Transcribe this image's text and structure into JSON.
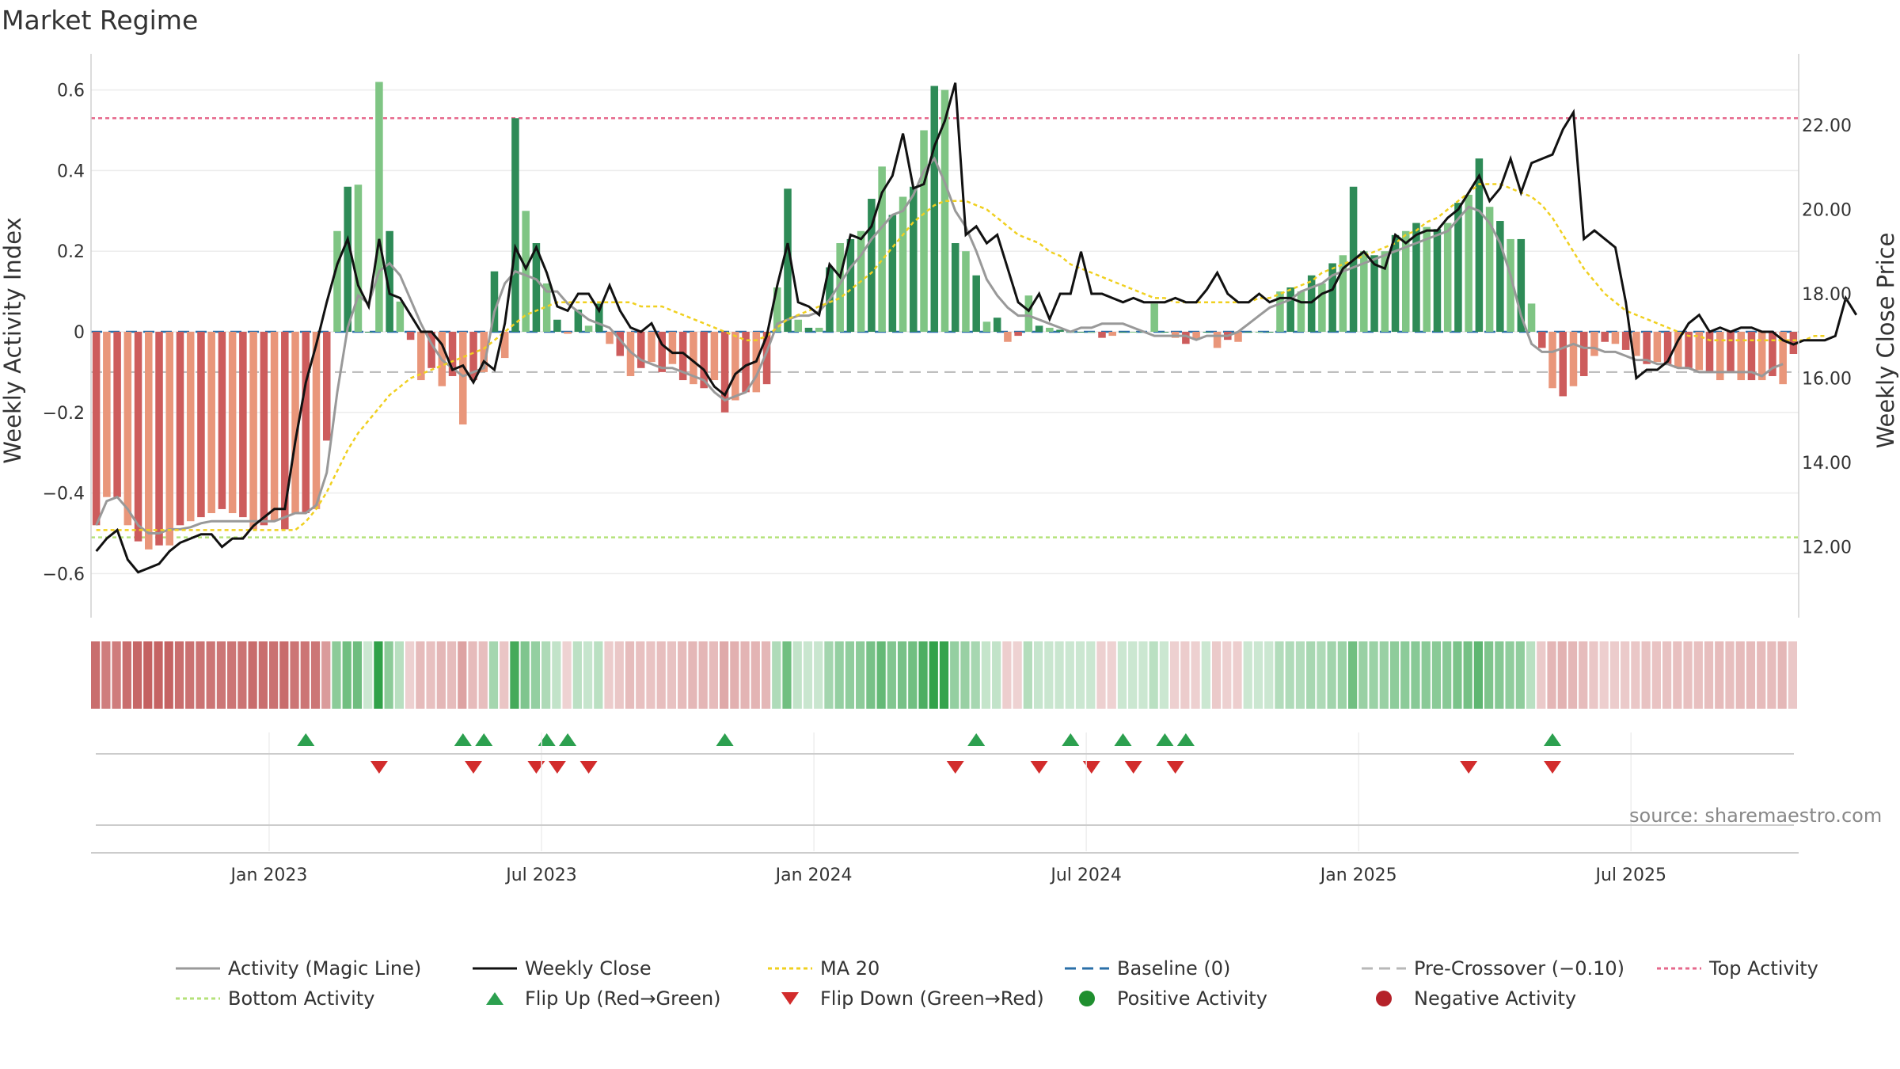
{
  "title": "Market Regime",
  "source_text": "source: sharemaestro.com",
  "colors": {
    "pos_dark": "#2e8b57",
    "pos_light": "#7fc584",
    "neg_dark": "#cd5c5c",
    "neg_light": "#e9967a",
    "magic_line": "#999999",
    "close": "#111111",
    "ma20": "#f0d020",
    "baseline": "#2a6fa8",
    "pre_cross": "#b8b8b8",
    "top_line": "#e6698c",
    "bottom_line": "#b5e27a",
    "flip_up": "#2ca04f",
    "flip_down": "#d22c2c"
  },
  "legend": [
    {
      "label": "Activity (Magic Line)",
      "type": "line",
      "color": "#999999",
      "dash": ""
    },
    {
      "label": "Weekly Close",
      "type": "line",
      "color": "#111111",
      "dash": ""
    },
    {
      "label": "MA 20",
      "type": "line",
      "color": "#f0d020",
      "dash": "5,4"
    },
    {
      "label": "Baseline (0)",
      "type": "line",
      "color": "#2a6fa8",
      "dash": "14,8"
    },
    {
      "label": "Pre-Crossover (−0.10)",
      "type": "line",
      "color": "#b8b8b8",
      "dash": "14,8"
    },
    {
      "label": "Top Activity",
      "type": "line",
      "color": "#e6698c",
      "dash": "5,4"
    },
    {
      "label": "Bottom Activity",
      "type": "line",
      "color": "#b5e27a",
      "dash": "5,4"
    },
    {
      "label": "Flip Up (Red→Green)",
      "type": "tri-up",
      "color": "#2ca04f"
    },
    {
      "label": "Flip Down (Green→Red)",
      "type": "tri-down",
      "color": "#d22c2c"
    },
    {
      "label": "Positive Activity",
      "type": "dot",
      "color": "#1f8f2f"
    },
    {
      "label": "Negative Activity",
      "type": "dot",
      "color": "#b5222a"
    }
  ],
  "chart_data": {
    "type": "bar",
    "title": "Market Regime",
    "ylabel": "Weekly Activity Index",
    "y2label": "Weekly Close Price",
    "ylim": [
      -0.67,
      0.67
    ],
    "y2lim": [
      10.7,
      23.5
    ],
    "yticks": [
      0.6,
      0.4,
      0.2,
      0,
      -0.2,
      -0.4,
      -0.6
    ],
    "ytick_labels": [
      "0.6",
      "0.4",
      "0.2",
      "0",
      "−0.2",
      "−0.4",
      "−0.6"
    ],
    "y2ticks": [
      22,
      20,
      18,
      16,
      14,
      12
    ],
    "y2tick_labels": [
      "22.00",
      "20.00",
      "18.00",
      "16.00",
      "14.00",
      "12.00"
    ],
    "x_start": "2022-09-05",
    "x_interval": "weekly",
    "xtick_labels": [
      "Jan 2023",
      "Jul 2023",
      "Jan 2024",
      "Jul 2024",
      "Jan 2025",
      "Jul 2025"
    ],
    "xtick_weeks": [
      17,
      43,
      69,
      95,
      121,
      147
    ],
    "reference_lines": {
      "top_activity": 0.53,
      "bottom_activity": -0.51,
      "pre_crossover": -0.1,
      "baseline": 0
    },
    "grid": true,
    "series": [
      {
        "name": "Weekly Activity Index (bars)",
        "values": [
          -0.48,
          -0.41,
          -0.41,
          -0.48,
          -0.52,
          -0.54,
          -0.53,
          -0.53,
          -0.48,
          -0.47,
          -0.46,
          -0.45,
          -0.44,
          -0.45,
          -0.46,
          -0.49,
          -0.48,
          -0.47,
          -0.49,
          -0.45,
          -0.45,
          -0.44,
          -0.27,
          0.25,
          0.36,
          0.365,
          0.0,
          0.62,
          0.25,
          0.075,
          -0.02,
          -0.12,
          -0.09,
          -0.135,
          -0.11,
          -0.23,
          -0.12,
          -0.1,
          0.15,
          -0.065,
          0.53,
          0.3,
          0.22,
          0.12,
          0.03,
          -0.005,
          0.055,
          0.015,
          0.07,
          -0.03,
          -0.06,
          -0.11,
          -0.09,
          -0.075,
          -0.1,
          -0.08,
          -0.12,
          -0.13,
          -0.14,
          -0.12,
          -0.2,
          -0.17,
          -0.15,
          -0.15,
          -0.13,
          0.11,
          0.355,
          0.03,
          0.01,
          0.01,
          0.16,
          0.22,
          0.23,
          0.25,
          0.33,
          0.41,
          0.29,
          0.335,
          0.36,
          0.5,
          0.61,
          0.6,
          0.22,
          0.2,
          0.14,
          0.025,
          0.035,
          -0.025,
          -0.01,
          0.09,
          0.015,
          0.01,
          0.005,
          0.0,
          0.0,
          0.0,
          -0.015,
          -0.01,
          0.0,
          0.0,
          0.0,
          0.07,
          0.0,
          -0.015,
          -0.03,
          -0.02,
          0.0,
          -0.04,
          -0.02,
          -0.025,
          0.0,
          0.0,
          0.0,
          0.1,
          0.11,
          0.1,
          0.14,
          0.12,
          0.17,
          0.19,
          0.36,
          0.2,
          0.19,
          0.2,
          0.24,
          0.25,
          0.27,
          0.26,
          0.255,
          0.27,
          0.32,
          0.34,
          0.43,
          0.31,
          0.275,
          0.23,
          0.23,
          0.07,
          -0.04,
          -0.14,
          -0.16,
          -0.135,
          -0.11,
          -0.06,
          -0.025,
          -0.03,
          -0.045,
          -0.06,
          -0.08,
          -0.075,
          -0.08,
          -0.09,
          -0.09,
          -0.095,
          -0.1,
          -0.12,
          -0.1,
          -0.12,
          -0.12,
          -0.12,
          -0.11,
          -0.13,
          -0.055
        ]
      },
      {
        "name": "Activity (Magic Line)",
        "values": [
          -0.48,
          -0.42,
          -0.41,
          -0.44,
          -0.48,
          -0.5,
          -0.5,
          -0.49,
          -0.49,
          -0.485,
          -0.475,
          -0.47,
          -0.47,
          -0.47,
          -0.47,
          -0.47,
          -0.47,
          -0.47,
          -0.46,
          -0.45,
          -0.45,
          -0.43,
          -0.35,
          -0.15,
          0.01,
          0.09,
          0.07,
          0.15,
          0.17,
          0.14,
          0.08,
          0.02,
          -0.03,
          -0.07,
          -0.09,
          -0.11,
          -0.1,
          -0.09,
          0.05,
          0.12,
          0.15,
          0.14,
          0.13,
          0.1,
          0.1,
          0.07,
          0.05,
          0.03,
          0.02,
          0.01,
          -0.02,
          -0.05,
          -0.07,
          -0.08,
          -0.09,
          -0.09,
          -0.1,
          -0.11,
          -0.12,
          -0.15,
          -0.17,
          -0.16,
          -0.15,
          -0.11,
          -0.05,
          0.02,
          0.03,
          0.04,
          0.04,
          0.05,
          0.08,
          0.12,
          0.16,
          0.19,
          0.23,
          0.26,
          0.29,
          0.3,
          0.34,
          0.4,
          0.43,
          0.37,
          0.3,
          0.26,
          0.2,
          0.13,
          0.09,
          0.06,
          0.04,
          0.04,
          0.03,
          0.02,
          0.01,
          0.0,
          0.01,
          0.01,
          0.02,
          0.02,
          0.02,
          0.01,
          0.0,
          -0.01,
          -0.01,
          -0.01,
          -0.01,
          -0.02,
          -0.01,
          -0.01,
          -0.01,
          0.0,
          0.02,
          0.04,
          0.06,
          0.07,
          0.08,
          0.1,
          0.11,
          0.12,
          0.14,
          0.15,
          0.16,
          0.17,
          0.18,
          0.19,
          0.2,
          0.21,
          0.22,
          0.23,
          0.24,
          0.25,
          0.28,
          0.31,
          0.3,
          0.27,
          0.22,
          0.14,
          0.04,
          -0.03,
          -0.05,
          -0.05,
          -0.04,
          -0.03,
          -0.04,
          -0.04,
          -0.05,
          -0.05,
          -0.06,
          -0.07,
          -0.07,
          -0.08,
          -0.08,
          -0.09,
          -0.09,
          -0.1,
          -0.1,
          -0.1,
          -0.1,
          -0.1,
          -0.1,
          -0.11,
          -0.09,
          -0.08
        ]
      },
      {
        "name": "Weekly Close",
        "values": [
          11.9,
          12.2,
          12.4,
          11.7,
          11.4,
          11.5,
          11.6,
          11.9,
          12.1,
          12.2,
          12.3,
          12.3,
          12.0,
          12.2,
          12.2,
          12.5,
          12.7,
          12.9,
          12.9,
          14.5,
          15.9,
          16.8,
          17.8,
          18.7,
          19.3,
          18.2,
          17.7,
          19.3,
          18.0,
          17.9,
          17.5,
          17.1,
          17.1,
          16.8,
          16.2,
          16.3,
          15.9,
          16.4,
          16.2,
          17.3,
          19.1,
          18.6,
          19.1,
          18.5,
          17.7,
          17.6,
          18.0,
          18.0,
          17.6,
          18.2,
          17.6,
          17.2,
          17.1,
          17.3,
          16.8,
          16.6,
          16.6,
          16.4,
          16.2,
          15.8,
          15.6,
          16.1,
          16.3,
          16.4,
          17.0,
          18.2,
          19.2,
          17.8,
          17.7,
          17.5,
          18.7,
          18.4,
          19.4,
          19.3,
          19.6,
          20.4,
          20.8,
          21.8,
          20.5,
          20.6,
          21.5,
          22.1,
          23.0,
          19.4,
          19.6,
          19.2,
          19.4,
          18.6,
          17.8,
          17.6,
          18.0,
          17.4,
          18.0,
          18.0,
          19.0,
          18.0,
          18.0,
          17.9,
          17.8,
          17.9,
          17.8,
          17.8,
          17.8,
          17.9,
          17.8,
          17.8,
          18.1,
          18.5,
          18.0,
          17.8,
          17.8,
          18.0,
          17.8,
          17.9,
          17.9,
          17.8,
          17.8,
          18.0,
          18.1,
          18.6,
          18.8,
          19.0,
          18.7,
          18.6,
          19.4,
          19.2,
          19.4,
          19.5,
          19.5,
          19.8,
          20.0,
          20.4,
          20.8,
          20.2,
          20.5,
          21.2,
          20.4,
          21.1,
          21.2,
          21.3,
          21.9,
          22.3,
          19.3,
          19.5,
          19.3,
          19.1,
          17.8,
          16.0,
          16.2,
          16.2,
          16.4,
          16.9,
          17.3,
          17.5,
          17.1,
          17.2,
          17.1,
          17.2,
          17.2,
          17.1,
          17.1,
          16.9,
          16.8,
          16.9,
          16.9,
          16.9,
          17.0,
          17.9,
          17.5
        ]
      },
      {
        "name": "MA 20",
        "values": [
          12.4,
          12.4,
          12.4,
          12.4,
          12.4,
          12.4,
          12.4,
          12.4,
          12.4,
          12.4,
          12.4,
          12.4,
          12.4,
          12.4,
          12.4,
          12.4,
          12.4,
          12.4,
          12.4,
          12.4,
          12.6,
          12.9,
          13.3,
          13.8,
          14.3,
          14.7,
          15.0,
          15.3,
          15.6,
          15.8,
          16.0,
          16.1,
          16.2,
          16.3,
          16.4,
          16.5,
          16.6,
          16.7,
          16.9,
          17.1,
          17.3,
          17.5,
          17.6,
          17.7,
          17.8,
          17.8,
          17.8,
          17.8,
          17.8,
          17.8,
          17.8,
          17.8,
          17.7,
          17.7,
          17.7,
          17.6,
          17.5,
          17.4,
          17.3,
          17.2,
          17.1,
          17.0,
          16.9,
          16.9,
          17.0,
          17.2,
          17.4,
          17.5,
          17.6,
          17.7,
          17.8,
          17.9,
          18.1,
          18.3,
          18.5,
          18.8,
          19.1,
          19.4,
          19.7,
          19.9,
          20.1,
          20.2,
          20.2,
          20.2,
          20.1,
          20.0,
          19.8,
          19.6,
          19.4,
          19.3,
          19.2,
          19.0,
          18.9,
          18.7,
          18.6,
          18.5,
          18.4,
          18.3,
          18.2,
          18.1,
          18.0,
          17.9,
          17.9,
          17.8,
          17.8,
          17.8,
          17.8,
          17.8,
          17.8,
          17.8,
          17.8,
          17.9,
          17.9,
          18.0,
          18.1,
          18.2,
          18.3,
          18.5,
          18.6,
          18.7,
          18.8,
          18.9,
          19.0,
          19.1,
          19.2,
          19.4,
          19.5,
          19.7,
          19.8,
          20.0,
          20.2,
          20.4,
          20.6,
          20.6,
          20.6,
          20.5,
          20.4,
          20.3,
          20.1,
          19.8,
          19.4,
          19.0,
          18.6,
          18.3,
          18.0,
          17.8,
          17.6,
          17.5,
          17.4,
          17.3,
          17.2,
          17.1,
          17.0,
          17.0,
          16.9,
          16.9,
          16.9,
          16.9,
          16.9,
          16.9,
          16.9,
          16.9,
          16.9,
          16.9,
          17.0,
          17.0
        ]
      }
    ],
    "regime_strip_intensity": "derived from Weekly Activity Index",
    "flip_up_weeks": [
      20,
      35,
      37,
      43,
      45,
      60,
      84,
      93,
      98,
      102,
      104,
      139
    ],
    "flip_down_weeks": [
      27,
      36,
      42,
      44,
      47,
      82,
      90,
      95,
      99,
      103,
      131,
      139
    ]
  }
}
